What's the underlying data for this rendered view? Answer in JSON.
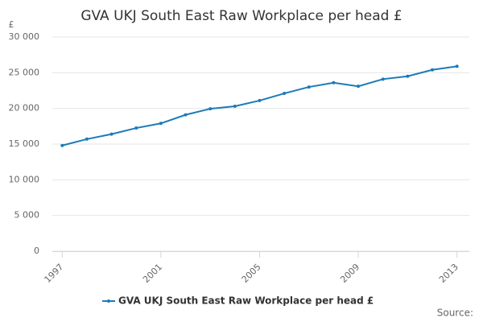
{
  "chart_data": {
    "type": "line",
    "title": "GVA UKJ South East Raw Workplace per head £",
    "y_label": "£",
    "source": "Source:",
    "x": [
      1997,
      1998,
      1999,
      2000,
      2001,
      2002,
      2003,
      2004,
      2005,
      2006,
      2007,
      2008,
      2009,
      2010,
      2011,
      2012,
      2013
    ],
    "series": [
      {
        "name": "GVA UKJ South East Raw Workplace per head £",
        "color": "#1a7bb9",
        "values": [
          14800,
          15700,
          16400,
          17250,
          17900,
          19100,
          19950,
          20300,
          21100,
          22100,
          23000,
          23600,
          23100,
          24100,
          24500,
          25400,
          25900
        ]
      }
    ],
    "xlim": [
      1996.6,
      2013.5
    ],
    "xticks": [
      1997,
      2001,
      2005,
      2009,
      2013
    ],
    "ylim": [
      0,
      30000
    ],
    "yticks": [
      0,
      {
        "value": 5000,
        "label": "5 000"
      },
      {
        "value": 10000,
        "label": "10 000"
      },
      {
        "value": 15000,
        "label": "15 000"
      },
      {
        "value": 20000,
        "label": "20 000"
      },
      {
        "value": 25000,
        "label": "25 000"
      },
      {
        "value": 30000,
        "label": "30 000"
      }
    ],
    "grid": true,
    "legend": "bottom"
  }
}
